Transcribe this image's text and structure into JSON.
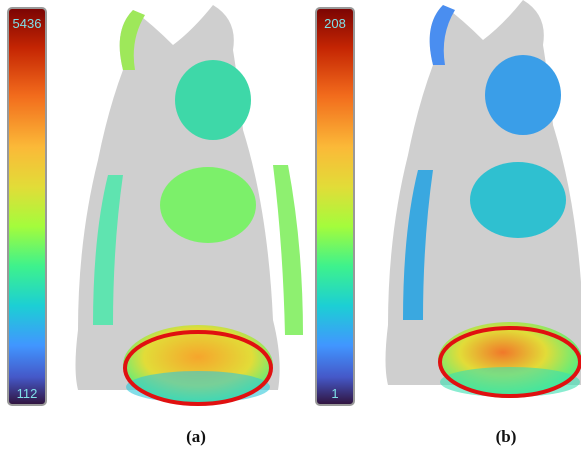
{
  "panels": [
    {
      "colorbar": {
        "max_label": "5436",
        "min_label": "112"
      },
      "caption": "(a)"
    },
    {
      "colorbar": {
        "max_label": "208",
        "min_label": "1"
      },
      "caption": "(b)"
    }
  ]
}
